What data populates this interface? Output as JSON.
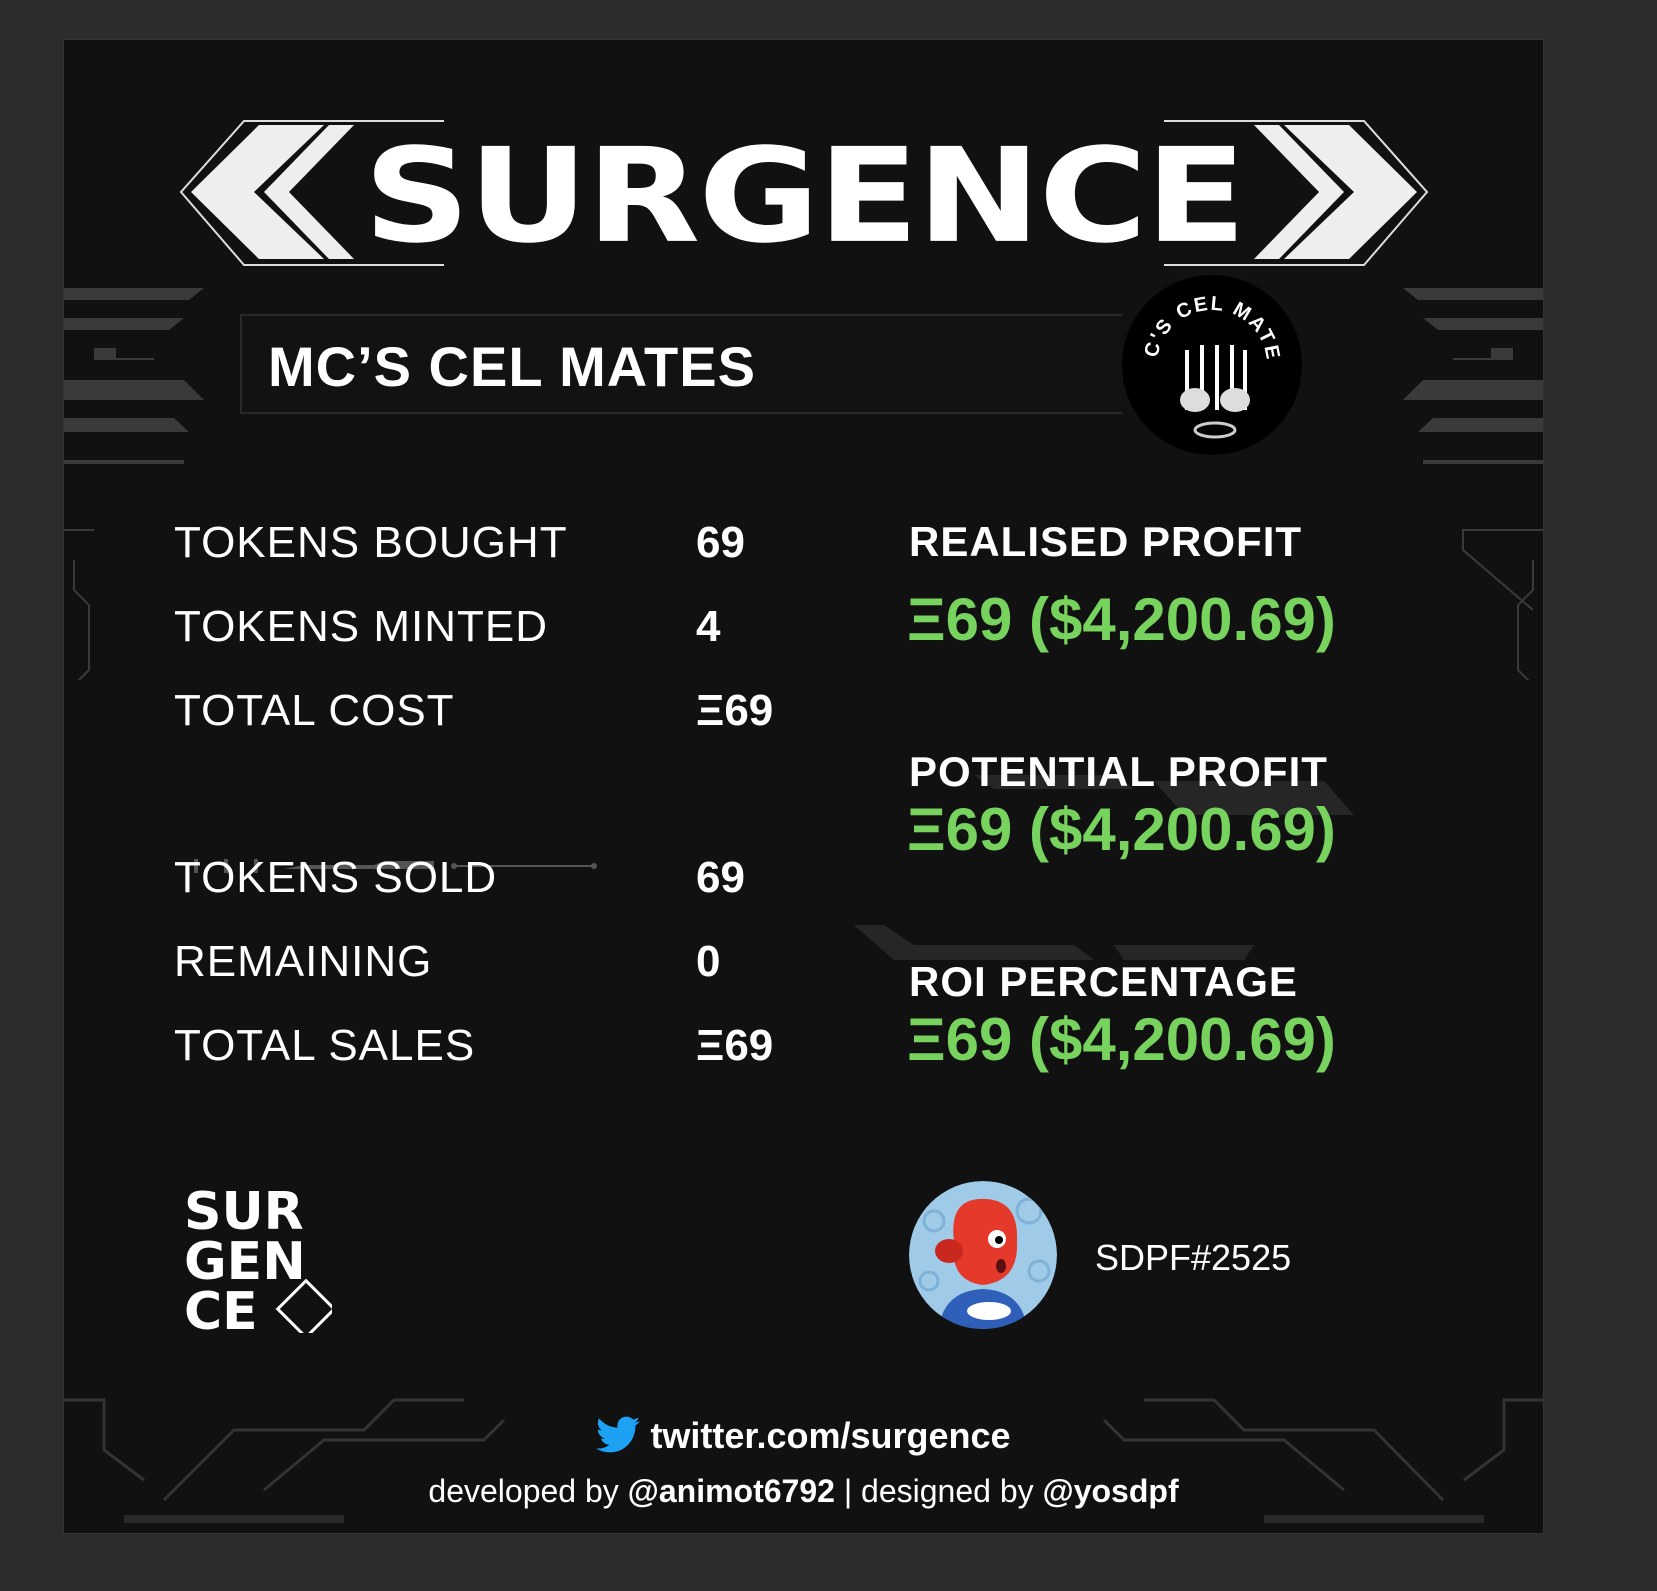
{
  "banner": {
    "wordmark": "SURGENCE"
  },
  "collection": {
    "name": "MC’S CEL MATES",
    "logo_text": "MC'S CEL MATES",
    "logo_icon": "jail-bars-icon"
  },
  "stats_left": [
    {
      "label": "TOKENS BOUGHT",
      "value": "69"
    },
    {
      "label": "TOKENS MINTED",
      "value": "4"
    },
    {
      "label": "TOTAL COST",
      "value": "Ξ69"
    },
    {
      "label": "TOKENS SOLD",
      "value": "69"
    },
    {
      "label": "REMAINING",
      "value": "0"
    },
    {
      "label": "TOTAL SALES",
      "value": "Ξ69"
    }
  ],
  "profits": [
    {
      "label": "REALISED PROFIT",
      "value": "Ξ69 ($4,200.69)"
    },
    {
      "label": "POTENTIAL PROFIT",
      "value": "Ξ69 ($4,200.69)"
    },
    {
      "label": "ROI PERCENTAGE",
      "value": "Ξ69 ($4,200.69)"
    }
  ],
  "small_logo": {
    "lines": [
      "SUR",
      "GEN",
      "CE"
    ]
  },
  "user": {
    "name": "SDPF#2525",
    "avatar_icon": "red-creature-avatar"
  },
  "footer": {
    "twitter": "twitter.com/surgence",
    "developed_prefix": "developed by ",
    "developer": "@animot6792",
    "separator": " | ",
    "designed_prefix": "designed by ",
    "designer": "@yosdpf"
  },
  "colors": {
    "background": "#111111",
    "accent_green": "#77d25e",
    "text": "#ffffff"
  }
}
